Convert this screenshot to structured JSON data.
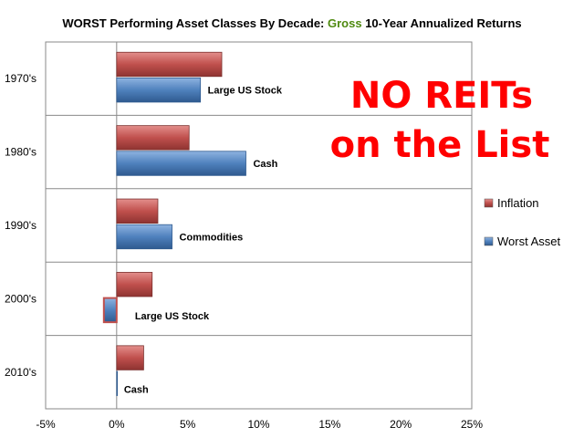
{
  "chart_data": {
    "type": "bar",
    "orientation": "horizontal",
    "title_parts": [
      {
        "text": "WORST Performing Asset Classes By Decade:  ",
        "color": "#000000"
      },
      {
        "text": "Gross",
        "color": "#4f8a10"
      },
      {
        "text": " 10-Year Annualized Returns",
        "color": "#000000"
      }
    ],
    "categories": [
      "1970's",
      "1980's",
      "1990's",
      "2000's",
      "2010's"
    ],
    "series": [
      {
        "name": "Inflation",
        "color": "#c0504d",
        "values": [
          7.4,
          5.1,
          2.9,
          2.5,
          1.9
        ]
      },
      {
        "name": "Worst Asset",
        "color": "#4f81bd",
        "values": [
          5.9,
          9.1,
          3.9,
          -0.9,
          0.0
        ]
      }
    ],
    "bar_annotations": [
      "Large US Stock",
      "Cash",
      "Commodities",
      "Large US Stock",
      "Cash"
    ],
    "x_ticks": [
      "-5%",
      "0%",
      "5%",
      "10%",
      "15%",
      "20%",
      "25%"
    ],
    "xlim": [
      -5,
      25
    ],
    "x_tick_step": 5,
    "grid": "horizontal category separators",
    "legend_position": "right",
    "overlay_text": [
      "NO REITs",
      "on the List"
    ],
    "overlay_color": "#ff0000"
  }
}
